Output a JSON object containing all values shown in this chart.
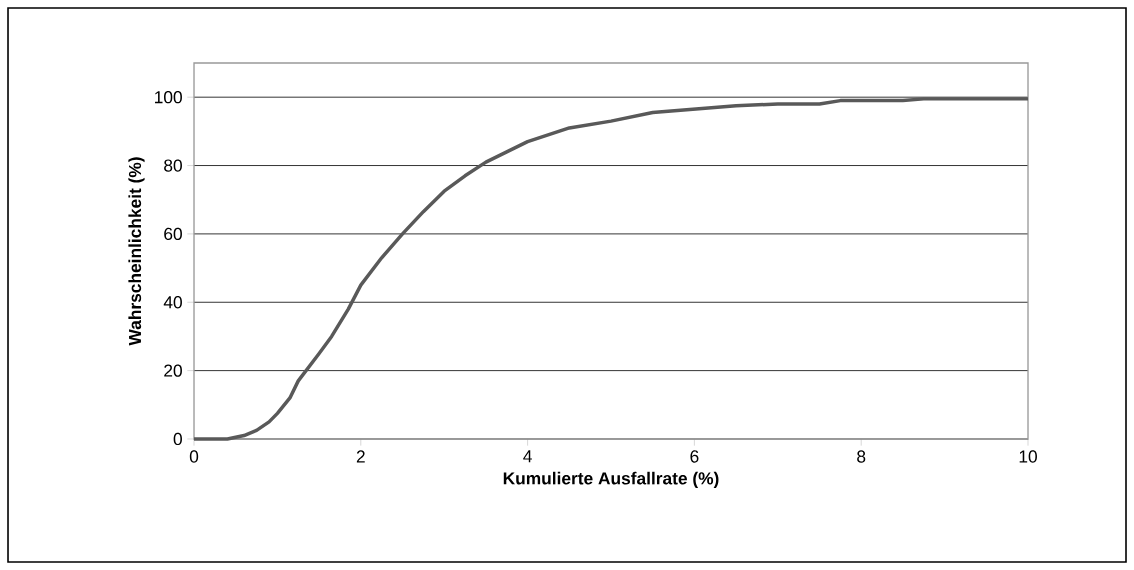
{
  "chart_data": {
    "type": "line",
    "xlabel": "Kumulierte Ausfallrate (%)",
    "ylabel": "Wahrscheinlichkeit (%)",
    "xlim": [
      0,
      10
    ],
    "xticks": [
      0,
      2,
      4,
      6,
      8,
      10
    ],
    "ylim": [
      0,
      110
    ],
    "yticks": [
      0,
      20,
      40,
      60,
      80,
      100
    ],
    "grid": "y",
    "marker": "none",
    "line_style": "solid",
    "series": [
      {
        "color": "#595959",
        "x": [
          0,
          0.4,
          0.6,
          0.75,
          0.9,
          1.0,
          1.15,
          1.25,
          1.5,
          1.65,
          1.85,
          2.0,
          2.25,
          2.5,
          2.75,
          3.0,
          3.25,
          3.5,
          3.75,
          4.0,
          4.25,
          4.5,
          5.0,
          5.5,
          6.0,
          6.5,
          7.0,
          7.5,
          7.75,
          8.5,
          8.75,
          10
        ],
        "values": [
          0,
          0,
          1,
          2.5,
          5,
          7.5,
          12,
          17,
          25,
          30,
          38,
          45,
          53,
          60,
          66.5,
          72.5,
          77,
          81,
          84,
          87,
          89,
          91,
          93,
          95.5,
          96.5,
          97.5,
          98,
          98,
          99,
          99,
          99.5,
          99.5
        ]
      }
    ]
  }
}
